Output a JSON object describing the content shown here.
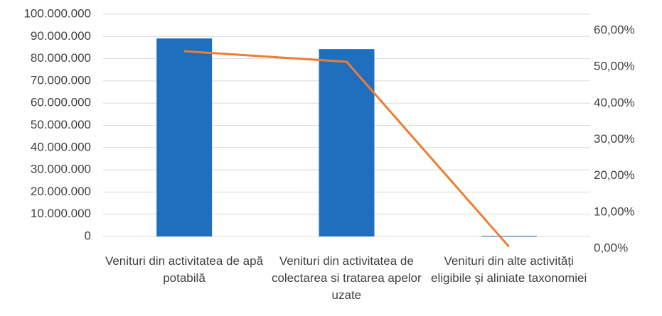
{
  "chart_data": {
    "type": "bar",
    "categories": [
      "Venituri din activitatea de apă potabilă",
      "Venituri din activitatea de colectarea si tratarea apelor uzate",
      "Venituri din alte activități eligibile și aliniate taxonomiei"
    ],
    "series": [
      {
        "type": "bar",
        "color": "#1f6fbf",
        "values": [
          89100000,
          84300000,
          300000
        ]
      },
      {
        "type": "line",
        "axis": "y2",
        "color": "#ed7d31",
        "values": [
          54.3,
          51.4,
          0.5
        ]
      }
    ],
    "ylim": [
      0,
      100000000
    ],
    "yticks": [
      0,
      {
        "value": 10000000,
        "label": "10.000.000"
      },
      {
        "value": 20000000,
        "label": "20.000.000"
      },
      {
        "value": 30000000,
        "label": "30.000.000"
      },
      {
        "value": 40000000,
        "label": "40.000.000"
      },
      {
        "value": 50000000,
        "label": "50.000.000"
      },
      {
        "value": 60000000,
        "label": "60.000.000"
      },
      {
        "value": 70000000,
        "label": "70.000.000"
      },
      {
        "value": 80000000,
        "label": "80.000.000"
      },
      {
        "value": 90000000,
        "label": "90.000.000"
      },
      {
        "value": 100000000,
        "label": "100.000.000"
      }
    ],
    "y2lim": [
      0,
      60
    ],
    "y2ticks": [
      {
        "value": 0,
        "label": "0,00%"
      },
      {
        "value": 10,
        "label": "10,00%"
      },
      {
        "value": 20,
        "label": "20,00%"
      },
      {
        "value": 30,
        "label": "30,00%"
      },
      {
        "value": 40,
        "label": "40,00%"
      },
      {
        "value": 50,
        "label": "50,00%"
      },
      {
        "value": 60,
        "label": "60,00%"
      }
    ],
    "grid": true
  }
}
